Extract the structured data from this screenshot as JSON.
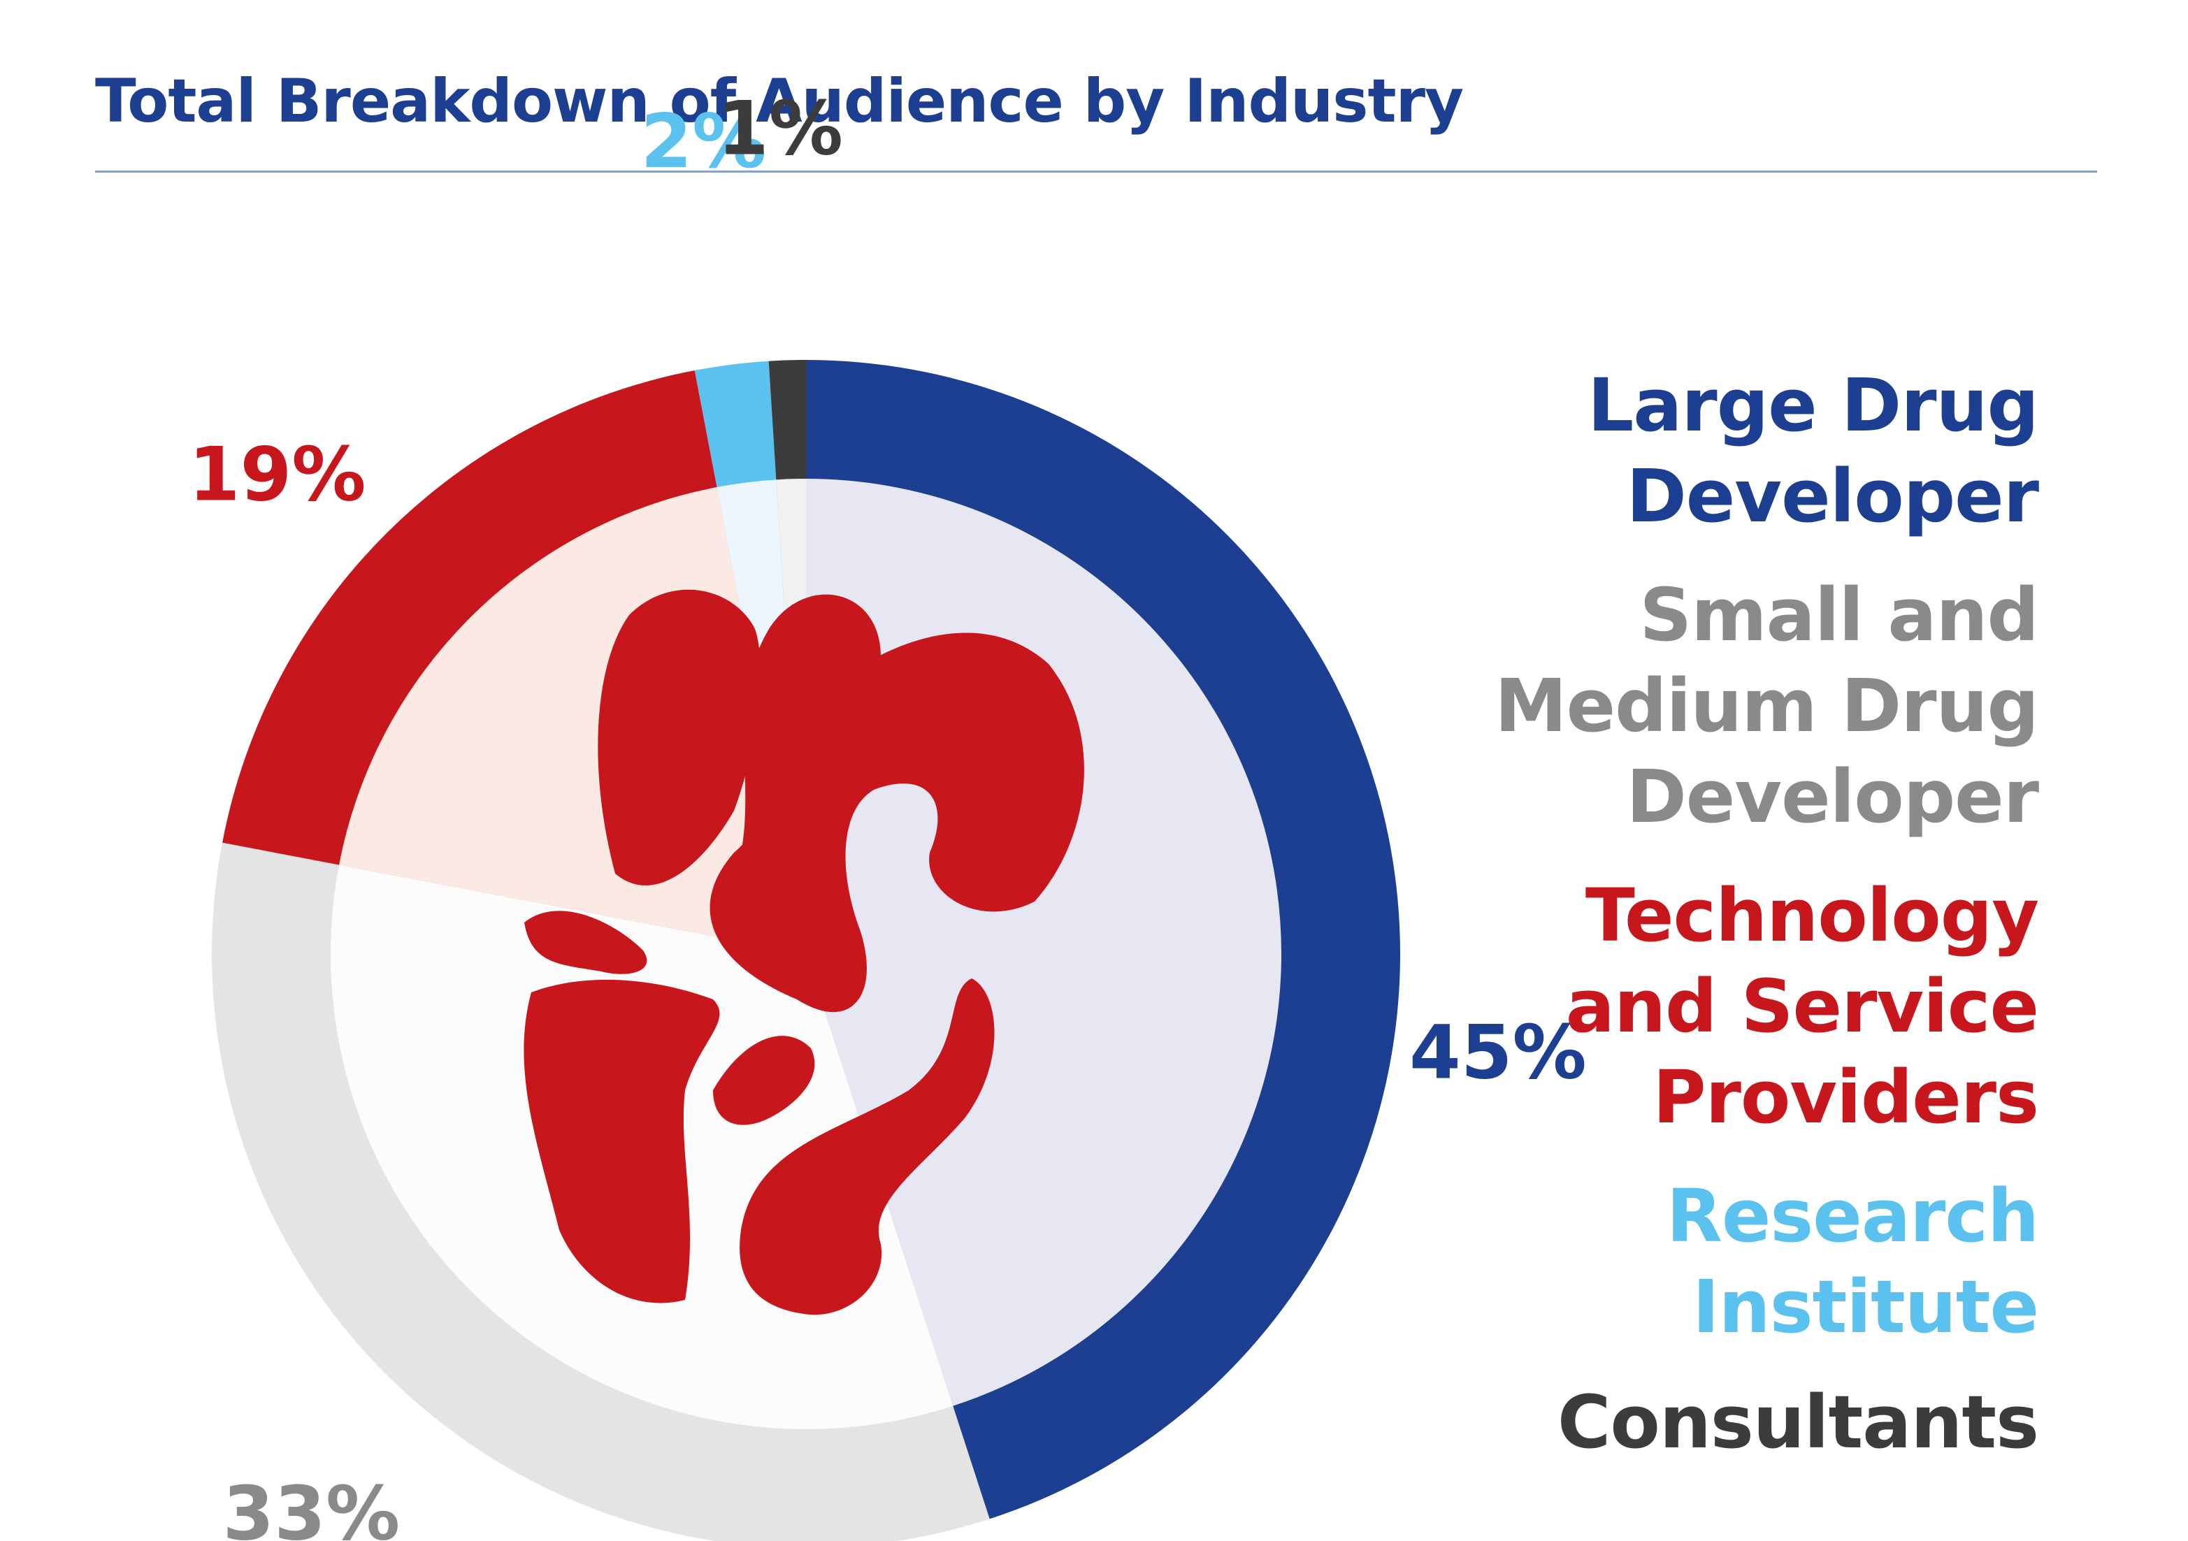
{
  "title": "Total Breakdown of Audience by Industry",
  "colors": {
    "title": "#1d3f91",
    "rule": "#8aa0c8",
    "inner_large": "#e7e7f3",
    "inner_tech": "#fbe9e3",
    "inner_small": "#fcfcfc",
    "inner_research": "#eef6fd",
    "inner_consult": "#f1f1f1",
    "icon": "#c8161d"
  },
  "chart_data": {
    "type": "pie",
    "categories": [
      "Large Drug Developer",
      "Small and Medium Drug Developer",
      "Technology and Service Providers",
      "Research Institute",
      "Consultants"
    ],
    "values": [
      45,
      33,
      19,
      2,
      1
    ],
    "labels": [
      "45%",
      "33%",
      "19%",
      "2%",
      "1%"
    ],
    "colors": [
      "#1d3f91",
      "#e4e4e4",
      "#c8161d",
      "#5bc2ef",
      "#3c3c3c"
    ],
    "legend_position": "right"
  },
  "legend": [
    {
      "lines": [
        "Large Drug",
        "Developer"
      ],
      "color": "#1d3f91"
    },
    {
      "lines": [
        "Small and",
        "Medium Drug",
        "Developer"
      ],
      "color": "#8a8a8a"
    },
    {
      "lines": [
        "Technology",
        "and Service",
        "Providers"
      ],
      "color": "#c8161d"
    },
    {
      "lines": [
        "Research",
        "Institute"
      ],
      "color": "#5bc2ef"
    },
    {
      "lines": [
        "Consultants"
      ],
      "color": "#3c3c3c"
    }
  ],
  "pct_label_colors": [
    "#1d3f91",
    "#8a8a8a",
    "#c8161d",
    "#5bc2ef",
    "#3c3c3c"
  ],
  "center_icon": "organ-icon"
}
